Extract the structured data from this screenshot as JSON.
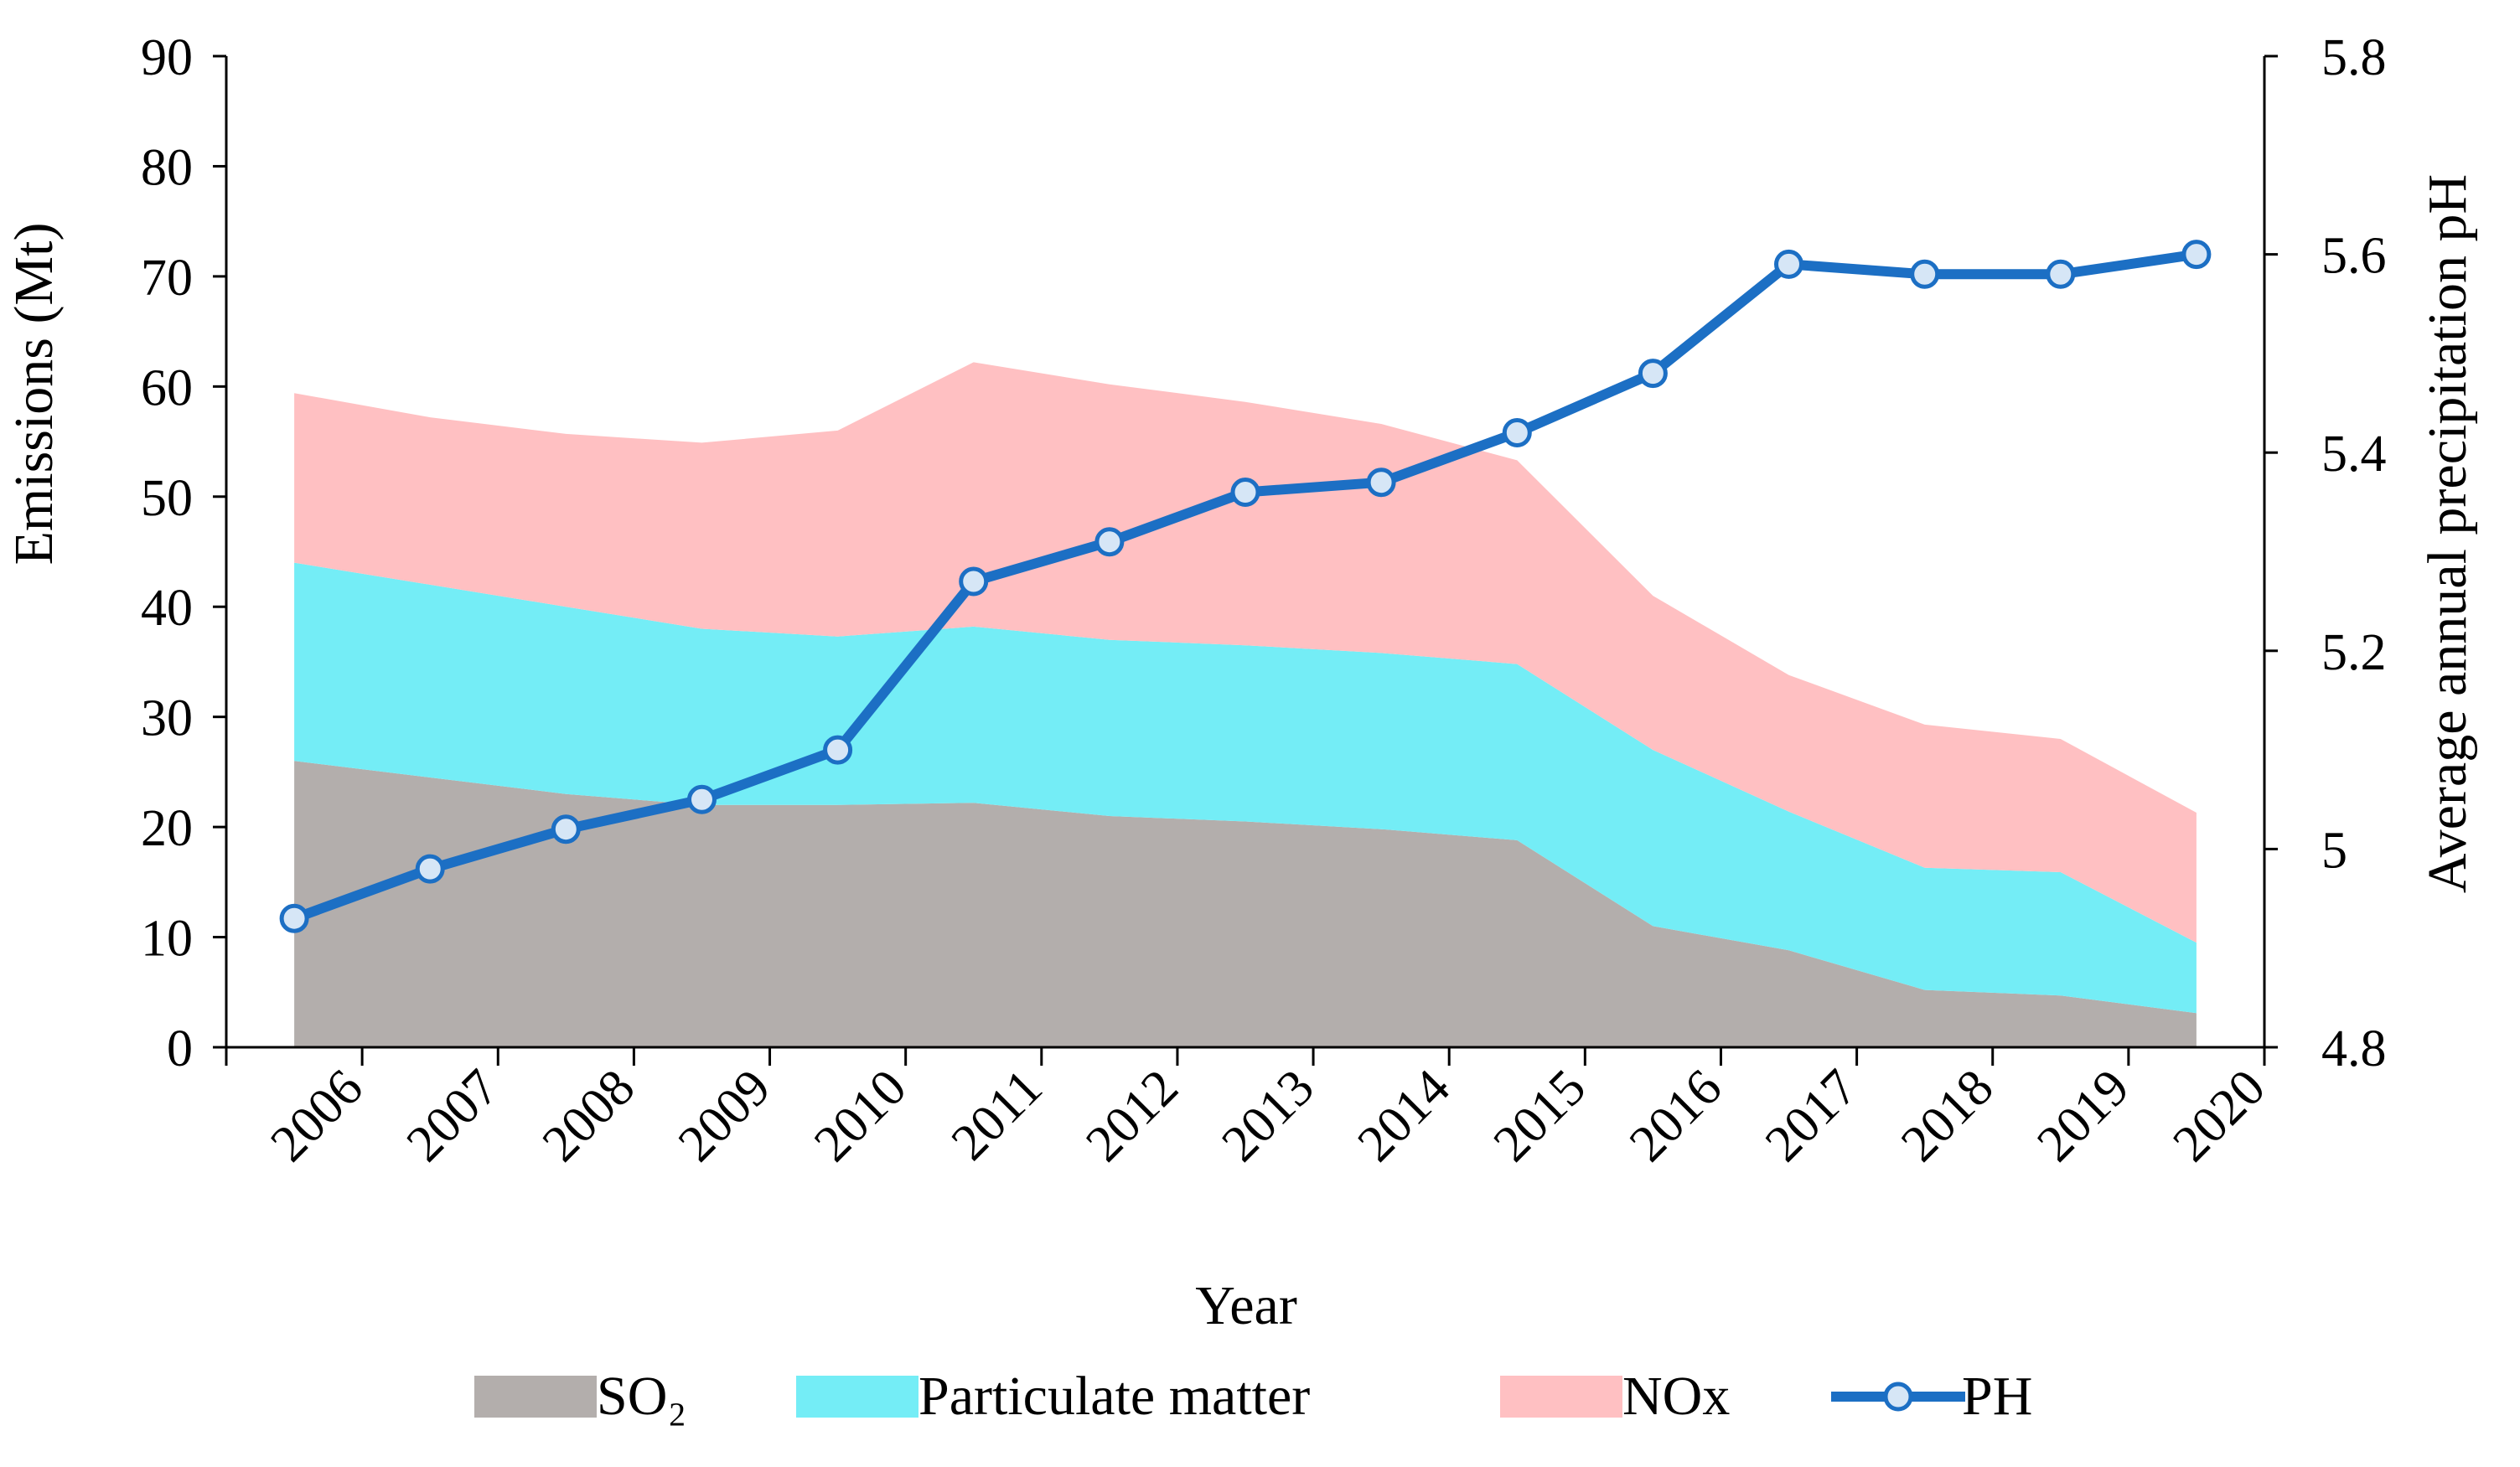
{
  "chart_data": {
    "type": "area",
    "xlabel": "Year",
    "ylabel": "Emissions (Mt)",
    "y2label": "Average annual precipitation pH",
    "categories": [
      "2006",
      "2007",
      "2008",
      "2009",
      "2010",
      "2011",
      "2012",
      "2013",
      "2014",
      "2015",
      "2016",
      "2017",
      "2018",
      "2019",
      "2020"
    ],
    "ylim": [
      0,
      90
    ],
    "yticks": [
      "0",
      "10",
      "20",
      "30",
      "40",
      "50",
      "60",
      "70",
      "80",
      "90"
    ],
    "y2lim": [
      4.8,
      5.8
    ],
    "y2ticks": [
      "4.8",
      "5",
      "5.2",
      "5.4",
      "5.6",
      "5.8"
    ],
    "stacked": true,
    "series": [
      {
        "name": "SO₂",
        "kind": "area",
        "color": "#b3aeac",
        "values": [
          26,
          24.5,
          23,
          22,
          22,
          22.2,
          21,
          20.5,
          19.8,
          18.8,
          11,
          8.8,
          5.2,
          4.7,
          3.1
        ]
      },
      {
        "name": "Particulate matter",
        "kind": "area",
        "color": "#74edf6",
        "values": [
          18,
          17.5,
          17,
          16,
          15.3,
          16,
          16,
          16,
          16,
          16,
          16,
          12.6,
          11.1,
          11.2,
          6.4
        ]
      },
      {
        "name": "NOx",
        "kind": "area",
        "color": "#ffc0c2",
        "values": [
          15.4,
          15.2,
          15.7,
          16.9,
          18.7,
          24,
          23.2,
          22.1,
          20.8,
          18.5,
          14,
          12.4,
          13,
          12.1,
          11.8
        ]
      },
      {
        "name": "PH",
        "kind": "line",
        "axis": "right",
        "color": "#1c6fc4",
        "values": [
          4.93,
          4.98,
          5.02,
          5.05,
          5.1,
          5.27,
          5.31,
          5.36,
          5.37,
          5.42,
          5.48,
          5.59,
          5.58,
          5.58,
          5.6
        ]
      }
    ],
    "legend": {
      "position": "bottom",
      "entries": [
        "SO₂",
        "Particulate matter",
        "NOx",
        "PH"
      ]
    },
    "grid": false
  }
}
